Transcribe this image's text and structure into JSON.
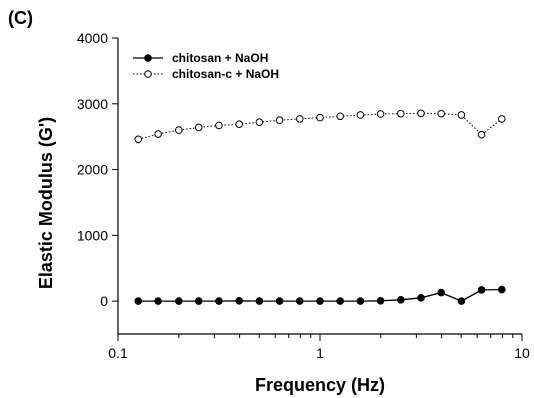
{
  "panel_label": "(C)",
  "chart_data": {
    "type": "line",
    "xlabel": "Frequency (Hz)",
    "ylabel": "Elastic Modulus (G')",
    "xscale": "log",
    "xlim": [
      0.1,
      10
    ],
    "ylim": [
      -500,
      4000
    ],
    "x_ticks": [
      0.1,
      1,
      10
    ],
    "x_tick_labels": [
      "0.1",
      "1",
      "10"
    ],
    "y_ticks": [
      0,
      1000,
      2000,
      3000,
      4000
    ],
    "y_tick_labels": [
      "0",
      "1000",
      "2000",
      "3000",
      "4000"
    ],
    "grid": false,
    "legend_position": "top-left",
    "x": [
      0.126,
      0.158,
      0.2,
      0.251,
      0.316,
      0.398,
      0.501,
      0.631,
      0.794,
      1.0,
      1.259,
      1.585,
      1.995,
      2.512,
      3.162,
      3.981,
      5.012,
      6.31,
      7.943
    ],
    "series": [
      {
        "name": "chitosan + NaOH",
        "marker": "filled-circle",
        "line_style": "solid",
        "values": [
          0,
          0,
          0,
          0,
          0,
          5,
          0,
          0,
          0,
          0,
          0,
          0,
          5,
          20,
          50,
          130,
          0,
          170,
          175
        ]
      },
      {
        "name": "chitosan-c + NaOH",
        "marker": "open-circle",
        "line_style": "dotted",
        "values": [
          2460,
          2540,
          2600,
          2640,
          2670,
          2690,
          2720,
          2750,
          2770,
          2790,
          2810,
          2830,
          2845,
          2850,
          2855,
          2850,
          2830,
          2530,
          2770
        ]
      }
    ]
  }
}
